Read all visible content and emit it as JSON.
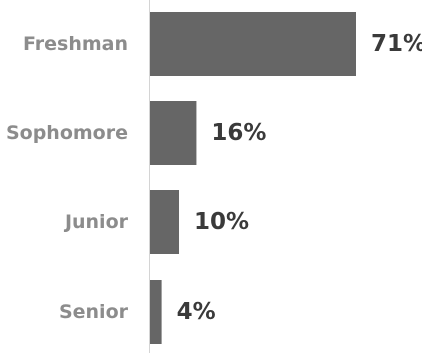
{
  "chart_data": {
    "type": "bar",
    "orientation": "horizontal",
    "categories": [
      "Freshman",
      "Sophomore",
      "Junior",
      "Senior"
    ],
    "values": [
      71,
      16,
      10,
      4
    ],
    "value_labels": [
      "71%",
      "16%",
      "10%",
      "4%"
    ],
    "unit": "%",
    "title": "",
    "xlabel": "",
    "ylabel": "",
    "xlim": [
      0,
      71
    ],
    "grid": false,
    "legend": "none",
    "bar_color": "#666666",
    "category_label_color": "#8c8c8c",
    "value_label_color": "#3a3a3a",
    "axis_color": "#d4d4d4"
  }
}
